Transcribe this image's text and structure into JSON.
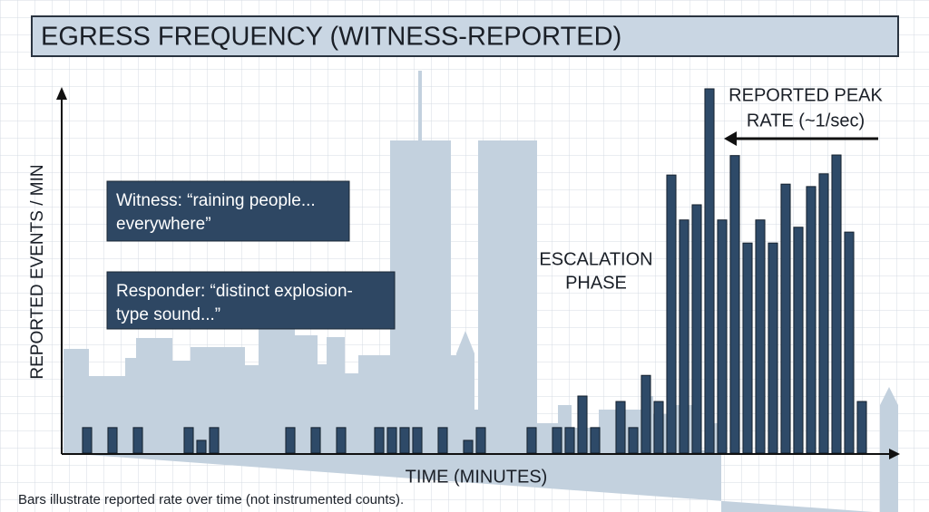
{
  "chart_data": {
    "type": "bar",
    "title": "EGRESS FREQUENCY (WITNESS-REPORTED)",
    "y_label": "REPORTED EVENTS / MIN",
    "x_label": "TIME (MINUTES)",
    "footnote": "Bars illustrate reported rate over time (not instrumented counts).",
    "annotations": [
      {
        "lines": [
          "Witness: “raining people...",
          "everywhere”"
        ]
      },
      {
        "lines": [
          "Responder: “distinct explosion-",
          "type sound...”"
        ]
      },
      {
        "lines": [
          "ESCALATION",
          "PHASE"
        ]
      },
      {
        "lines": [
          "REPORTED PEAK",
          "RATE (~1/sec)"
        ]
      }
    ],
    "x": [
      2,
      4,
      6,
      10,
      11,
      12,
      18,
      20,
      22,
      25,
      26,
      27,
      28,
      30,
      32,
      33,
      37,
      39,
      40,
      41,
      42,
      44,
      45,
      46,
      47,
      48,
      49,
      50,
      51,
      52,
      53,
      54,
      55,
      56,
      57,
      58,
      59,
      60,
      61,
      62,
      63
    ],
    "values": [
      4.2,
      4.2,
      4.2,
      4.2,
      2.1,
      4.2,
      4.2,
      4.2,
      4.2,
      4.2,
      4.2,
      4.2,
      4.2,
      4.2,
      2.1,
      4.2,
      4.2,
      4.2,
      4.2,
      9.4,
      4.2,
      8.5,
      4.2,
      12.8,
      8.5,
      45.8,
      38.4,
      40.9,
      60,
      38.4,
      49,
      34.6,
      38.4,
      34.6,
      44.3,
      37.2,
      43.9,
      46,
      49.1,
      36.4,
      8.5
    ],
    "color": "#2e4a68",
    "xlim": [
      0,
      65.5
    ],
    "ylim": [
      0,
      60
    ]
  }
}
